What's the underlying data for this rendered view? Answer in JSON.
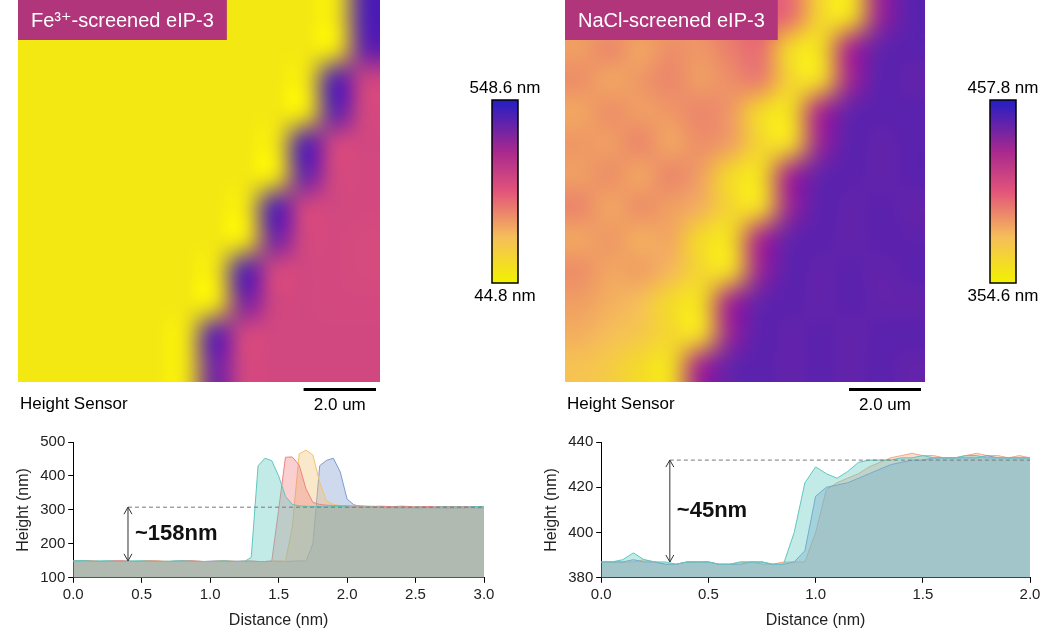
{
  "chart_data": [
    {
      "type": "heatmap",
      "title": "Fe³⁺-screened eIP-3",
      "subtitle": "Height Sensor",
      "xlim": [
        0,
        10
      ],
      "ylim": [
        0,
        10
      ],
      "tick_labels": false,
      "cells": [
        [
          70,
          70,
          70,
          70,
          70,
          70,
          70,
          70,
          70,
          70,
          70,
          500
        ],
        [
          70,
          70,
          70,
          70,
          70,
          70,
          70,
          70,
          70,
          70,
          70,
          480
        ],
        [
          70,
          70,
          70,
          70,
          70,
          70,
          70,
          70,
          70,
          70,
          500,
          340
        ],
        [
          70,
          70,
          70,
          70,
          70,
          70,
          70,
          70,
          70,
          70,
          490,
          330
        ],
        [
          70,
          70,
          70,
          70,
          70,
          70,
          70,
          70,
          70,
          500,
          335,
          330
        ],
        [
          70,
          70,
          70,
          70,
          70,
          70,
          70,
          70,
          70,
          480,
          330,
          325
        ],
        [
          70,
          70,
          70,
          70,
          70,
          70,
          70,
          70,
          500,
          335,
          330,
          325
        ],
        [
          70,
          70,
          70,
          70,
          70,
          70,
          70,
          70,
          470,
          330,
          325,
          320
        ],
        [
          70,
          70,
          70,
          70,
          70,
          70,
          70,
          500,
          330,
          330,
          325,
          320
        ],
        [
          70,
          70,
          70,
          70,
          70,
          70,
          70,
          460,
          335,
          330,
          325,
          325
        ],
        [
          70,
          70,
          70,
          70,
          70,
          70,
          490,
          330,
          330,
          330,
          330,
          330
        ],
        [
          70,
          70,
          70,
          70,
          70,
          70,
          470,
          330,
          330,
          330,
          330,
          330
        ]
      ],
      "colorbar": {
        "range": [
          44.8,
          548.6
        ],
        "ticks": [
          {
            "value": 548.6,
            "label": "548.6 nm"
          },
          {
            "value": 44.8,
            "label": "44.8 nm"
          }
        ]
      },
      "scale_bar": {
        "value": 2.0,
        "label": "2.0 um"
      }
    },
    {
      "type": "heatmap",
      "title": "NaCl-screened eIP-3",
      "subtitle": "Height Sensor",
      "xlim": [
        0,
        10
      ],
      "ylim": [
        0,
        10
      ],
      "tick_labels": false,
      "cells": [
        [
          390,
          386,
          394,
          388,
          392,
          398,
          404,
          400,
          368,
          364,
          432,
          446
        ],
        [
          388,
          394,
          386,
          392,
          390,
          396,
          400,
          366,
          364,
          428,
          444,
          446
        ],
        [
          392,
          386,
          390,
          394,
          388,
          392,
          396,
          368,
          366,
          430,
          446,
          444
        ],
        [
          386,
          392,
          388,
          390,
          394,
          390,
          366,
          364,
          428,
          444,
          446,
          446
        ],
        [
          390,
          388,
          394,
          386,
          392,
          388,
          368,
          366,
          432,
          446,
          444,
          446
        ],
        [
          388,
          392,
          386,
          394,
          388,
          366,
          364,
          430,
          444,
          446,
          444,
          446
        ],
        [
          394,
          386,
          392,
          388,
          384,
          368,
          366,
          432,
          446,
          444,
          446,
          444
        ],
        [
          386,
          390,
          384,
          386,
          366,
          364,
          428,
          444,
          446,
          444,
          446,
          445
        ],
        [
          392,
          386,
          388,
          382,
          368,
          366,
          432,
          446,
          444,
          446,
          444,
          446
        ],
        [
          388,
          384,
          380,
          366,
          364,
          430,
          444,
          446,
          444,
          446,
          444,
          444
        ],
        [
          384,
          380,
          376,
          368,
          366,
          432,
          446,
          444,
          446,
          444,
          446,
          446
        ],
        [
          378,
          374,
          366,
          364,
          430,
          444,
          446,
          444,
          446,
          444,
          446,
          444
        ]
      ],
      "colorbar": {
        "range": [
          354.6,
          457.8
        ],
        "ticks": [
          {
            "value": 457.8,
            "label": "457.8 nm"
          },
          {
            "value": 354.6,
            "label": "354.6 nm"
          }
        ]
      },
      "scale_bar": {
        "value": 2.0,
        "label": "2.0 um"
      }
    },
    {
      "type": "area",
      "x_label": "Distance (nm)",
      "y_label": "Height (nm)",
      "grid": false,
      "xlim": [
        0,
        3
      ],
      "ylim": [
        100,
        500
      ],
      "xticks": [
        {
          "value": 0,
          "label": "0.0"
        },
        0.5,
        {
          "value": 1,
          "label": "1.0"
        },
        1.5,
        {
          "value": 2,
          "label": "2.0"
        },
        2.5,
        {
          "value": 3,
          "label": "3.0"
        }
      ],
      "yticks": [
        100,
        200,
        300,
        400,
        500
      ],
      "x": [
        0,
        0.05,
        0.1,
        0.15,
        0.2,
        0.25,
        0.3,
        0.35,
        0.4,
        0.45,
        0.5,
        0.55,
        0.6,
        0.65,
        0.7,
        0.75,
        0.8,
        0.85,
        0.9,
        0.95,
        1,
        1.05,
        1.1,
        1.15,
        1.2,
        1.25,
        1.3,
        1.35,
        1.4,
        1.45,
        1.5,
        1.55,
        1.6,
        1.65,
        1.7,
        1.75,
        1.8,
        1.85,
        1.9,
        1.95,
        2,
        2.05,
        2.1,
        2.15,
        2.2,
        2.25,
        2.3,
        2.35,
        2.4,
        2.45,
        2.5,
        2.55,
        2.6,
        2.65,
        2.7,
        2.75,
        2.8,
        2.85,
        2.9,
        2.95,
        3
      ],
      "series": [
        {
          "color": "#5fc7bf",
          "values": [
            150,
            151,
            150,
            149,
            150,
            150,
            149,
            148,
            149,
            150,
            150,
            149,
            148,
            148,
            149,
            150,
            150,
            149,
            148,
            148,
            148,
            149,
            150,
            149,
            148,
            148,
            160,
            430,
            452,
            445,
            400,
            340,
            316,
            312,
            311,
            310,
            310,
            309,
            310,
            310,
            309,
            308,
            308,
            309,
            308,
            308,
            307,
            308,
            308,
            307,
            308,
            308,
            307,
            308,
            309,
            308,
            309,
            308,
            309,
            310,
            309
          ]
        },
        {
          "color": "#f08282",
          "values": [
            149,
            150,
            150,
            149,
            148,
            149,
            150,
            150,
            149,
            148,
            149,
            150,
            149,
            148,
            148,
            149,
            150,
            150,
            149,
            148,
            148,
            149,
            150,
            149,
            148,
            148,
            149,
            148,
            148,
            149,
            300,
            455,
            456,
            432,
            362,
            322,
            316,
            314,
            313,
            312,
            312,
            311,
            312,
            311,
            310,
            311,
            310,
            310,
            311,
            310,
            309,
            310,
            310,
            309,
            310,
            310,
            309,
            310,
            310,
            309,
            310
          ]
        },
        {
          "color": "#f3c274",
          "values": [
            150,
            149,
            149,
            150,
            148,
            149,
            150,
            149,
            148,
            148,
            149,
            150,
            150,
            149,
            148,
            149,
            149,
            150,
            149,
            148,
            148,
            149,
            150,
            149,
            148,
            149,
            149,
            148,
            148,
            149,
            150,
            149,
            250,
            465,
            476,
            462,
            382,
            326,
            316,
            313,
            312,
            311,
            310,
            310,
            311,
            310,
            309,
            309,
            310,
            309,
            308,
            309,
            309,
            308,
            309,
            310,
            309,
            308,
            309,
            309,
            308
          ]
        },
        {
          "color": "#7e9cd0",
          "values": [
            148,
            149,
            150,
            149,
            148,
            148,
            149,
            150,
            149,
            148,
            148,
            149,
            150,
            149,
            148,
            148,
            149,
            150,
            149,
            148,
            149,
            149,
            148,
            148,
            149,
            150,
            149,
            148,
            148,
            149,
            148,
            148,
            149,
            150,
            149,
            200,
            430,
            446,
            452,
            412,
            332,
            315,
            310,
            308,
            307,
            307,
            306,
            306,
            305,
            306,
            305,
            305,
            306,
            305,
            305,
            304,
            305,
            305,
            306,
            305,
            305
          ]
        }
      ],
      "annotations": [
        {
          "text": "~158nm",
          "x": 0.4,
          "y": [
            150,
            308
          ]
        }
      ]
    },
    {
      "type": "area",
      "x_label": "Distance (nm)",
      "y_label": "Height (nm)",
      "grid": false,
      "xlim": [
        0,
        2
      ],
      "ylim": [
        380,
        440
      ],
      "xticks": [
        {
          "value": 0,
          "label": "0.0"
        },
        0.5,
        {
          "value": 1,
          "label": "1.0"
        },
        1.5,
        {
          "value": 2,
          "label": "2.0"
        }
      ],
      "yticks": [
        380,
        400,
        420,
        440
      ],
      "x": [
        0,
        0.05,
        0.1,
        0.15,
        0.2,
        0.25,
        0.3,
        0.35,
        0.4,
        0.45,
        0.5,
        0.55,
        0.6,
        0.65,
        0.7,
        0.75,
        0.8,
        0.85,
        0.9,
        0.95,
        1,
        1.05,
        1.1,
        1.15,
        1.2,
        1.25,
        1.3,
        1.35,
        1.4,
        1.45,
        1.5,
        1.55,
        1.6,
        1.65,
        1.7,
        1.75,
        1.8,
        1.85,
        1.9,
        1.95,
        2
      ],
      "series": [
        {
          "color": "#5fc7bf",
          "values": [
            387,
            387,
            388,
            391,
            388,
            387,
            387,
            386,
            387,
            387,
            387,
            386,
            386,
            387,
            387,
            387,
            386,
            386,
            400,
            422,
            429,
            426,
            424,
            427,
            431,
            432,
            432,
            432,
            433,
            433,
            434,
            433,
            433,
            433,
            434,
            434,
            433,
            433,
            433,
            433,
            433
          ]
        },
        {
          "color": "#7e9cd0",
          "values": [
            387,
            387,
            387,
            388,
            387,
            387,
            386,
            386,
            387,
            387,
            387,
            386,
            386,
            386,
            387,
            387,
            386,
            386,
            387,
            392,
            416,
            420,
            421,
            422,
            424,
            426,
            428,
            430,
            431,
            432,
            432,
            433,
            433,
            433,
            433,
            433,
            434,
            433,
            433,
            433,
            433
          ]
        },
        {
          "color": "#f3a88a",
          "values": [
            387,
            387,
            387,
            387,
            388,
            387,
            386,
            386,
            387,
            387,
            387,
            386,
            386,
            387,
            387,
            386,
            386,
            387,
            387,
            387,
            400,
            419,
            422,
            424,
            426,
            429,
            431,
            433,
            434,
            435,
            434,
            434,
            433,
            433,
            434,
            435,
            434,
            434,
            433,
            434,
            433
          ]
        }
      ],
      "annotations": [
        {
          "text": "~45nm",
          "x": 0.32,
          "y": [
            387,
            432
          ]
        }
      ]
    }
  ]
}
